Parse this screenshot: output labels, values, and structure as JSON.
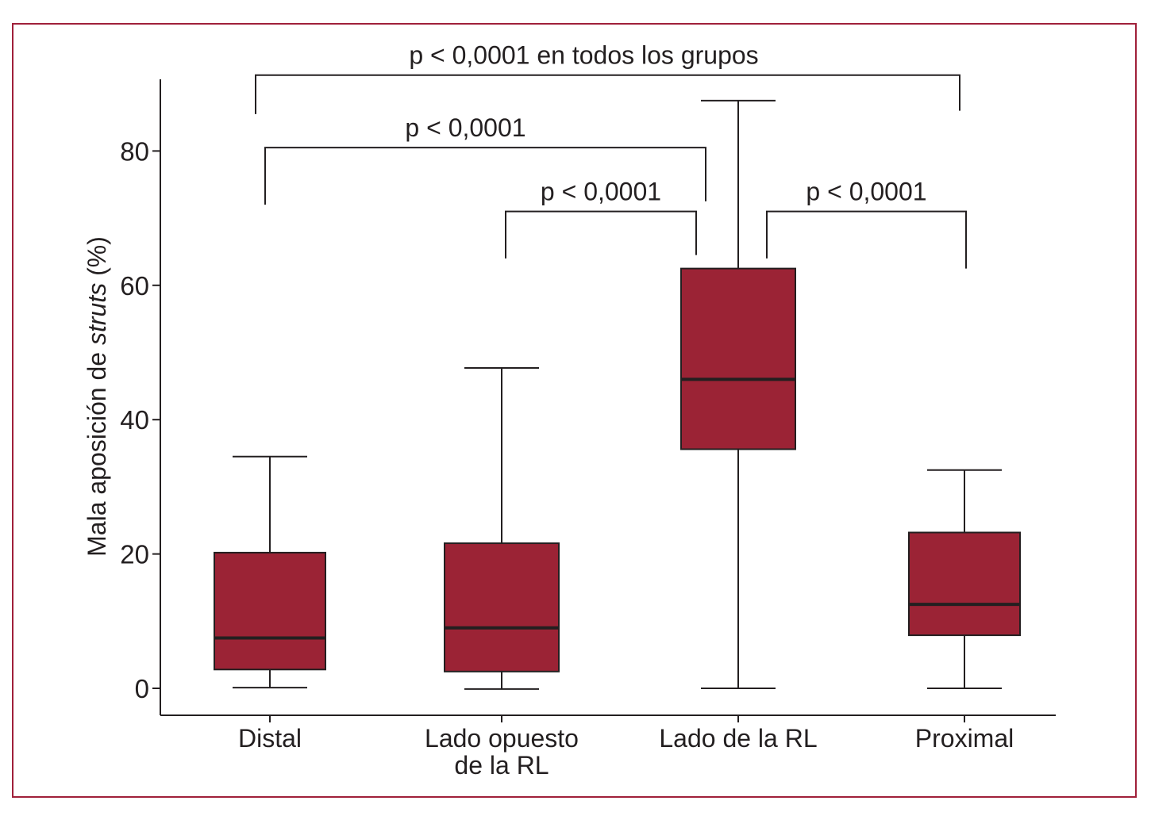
{
  "chart_data": {
    "type": "boxplot",
    "ylabel_parts": [
      "Mala aposición de ",
      "struts",
      " (%)"
    ],
    "ylim": [
      0,
      90
    ],
    "yticks": [
      "0",
      "20",
      "40",
      "60",
      "80"
    ],
    "ytick_values": [
      0,
      20,
      40,
      60,
      80
    ],
    "grid": false,
    "categories": [
      {
        "label_lines": [
          "Distal"
        ]
      },
      {
        "label_lines": [
          "Lado opuesto",
          "de la RL"
        ]
      },
      {
        "label_lines": [
          "Lado de la RL"
        ]
      },
      {
        "label_lines": [
          "Proximal"
        ]
      }
    ],
    "boxes": [
      {
        "min": 0.1,
        "q1": 2.8,
        "median": 7.5,
        "q3": 20.2,
        "max": 34.5
      },
      {
        "min": -0.1,
        "q1": 2.5,
        "median": 9.0,
        "q3": 21.6,
        "max": 47.7
      },
      {
        "min": 0.0,
        "q1": 35.6,
        "median": 46.0,
        "q3": 62.5,
        "max": 87.5
      },
      {
        "min": 0.0,
        "q1": 7.9,
        "median": 12.5,
        "q3": 23.2,
        "max": 32.5
      }
    ],
    "box_color": "#9b2335",
    "annotations": [
      {
        "text": "p < 0,0001 en todos los grupos",
        "from": 0,
        "to": 3,
        "level": 91.3,
        "left_drop": 85.5,
        "right_drop": 86.0
      },
      {
        "text": "p < 0,0001",
        "from": 0,
        "to": 2,
        "level": 80.5,
        "left_drop": 72.0,
        "right_drop": 72.5
      },
      {
        "text": "p < 0,0001",
        "from": 1,
        "to": 2,
        "level": 71.0,
        "left_drop": 64.0,
        "right_drop": 64.5
      },
      {
        "text": "p < 0,0001",
        "from": 2,
        "to": 3,
        "level": 71.0,
        "left_drop": 64.0,
        "right_drop": 62.5
      }
    ]
  }
}
